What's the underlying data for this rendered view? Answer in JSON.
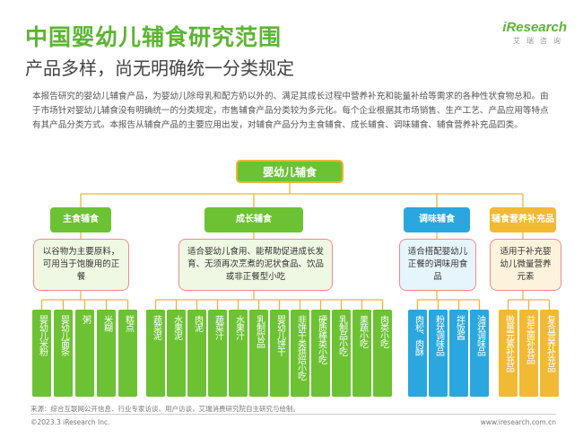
{
  "header": {
    "title": "中国婴幼儿辅食研究范围",
    "subtitle": "产品多样，尚无明确统一分类规定",
    "logo_text": "iResearch",
    "logo_sub": "艾瑞咨询"
  },
  "intro": "本报告研究的婴幼儿辅食产品，为婴幼儿除母乳和配方奶以外的、满足其成长过程中营养补充和能量补给等需求的各种性状食物总和。由于市场针对婴幼儿辅食没有明确统一的分类规定，市售辅食产品分类较为多元化。每个企业根据其市场销售、生产工艺、产品应用等特点有其产品分类方式。本报告从辅食产品的主要应用出发，对辅食产品分为主食辅食、成长辅食、调味辅食、辅食营养补充品四类。",
  "diagram": {
    "root": "婴幼儿辅食",
    "categories": [
      {
        "label": "主食辅食",
        "description": "以谷物为主要原料，可用当于饱腹用的正餐",
        "leaves": [
          "婴幼儿米粉",
          "婴幼儿面条",
          "粥",
          "米糊",
          "糕点"
        ]
      },
      {
        "label": "成长辅食",
        "description": "适合婴幼儿食用、能帮助促进成长发育、无须再次烹煮的泥状食品、饮品或非正餐型小吃",
        "leaves": [
          "蔬菜泥",
          "水果泥",
          "肉泥",
          "蔬菜汁",
          "水果汁",
          "乳制饮品",
          "婴幼儿饼干",
          "非饼干类烘焙小吃",
          "硬质棒类小吃",
          "乳制品小吃",
          "果蔬小吃",
          "肉类小吃"
        ]
      },
      {
        "label": "调味辅食",
        "description": "适合搭配婴幼儿正餐的调味用食品",
        "leaves": [
          "肉松、肉酥",
          "粉状调味品",
          "拌饭酱",
          "油状调味品"
        ]
      },
      {
        "label": "辅食营养补充品",
        "description": "适用于补充婴幼儿微量营养元素",
        "leaves": [
          "微量元素补充品",
          "益生菌补充品",
          "复合营养补充品"
        ]
      }
    ]
  },
  "footer": {
    "source": "来源：综合互联网公开信息、行业专家访谈、用户访谈，艾瑞消费研究院自主研究与绘制。",
    "copyright": "©2023.3 iResearch Inc.",
    "site": "www.iresearch.com.cn"
  },
  "colors": {
    "green": "#6cc233",
    "green_light": "#eef8e2",
    "blue": "#2aa7de",
    "blue_light": "#e6f4fb",
    "yellow": "#f2b935",
    "yellow_light": "#fdf3dd",
    "pink_border": "#f28b8b",
    "orange_border": "#f1b335"
  }
}
